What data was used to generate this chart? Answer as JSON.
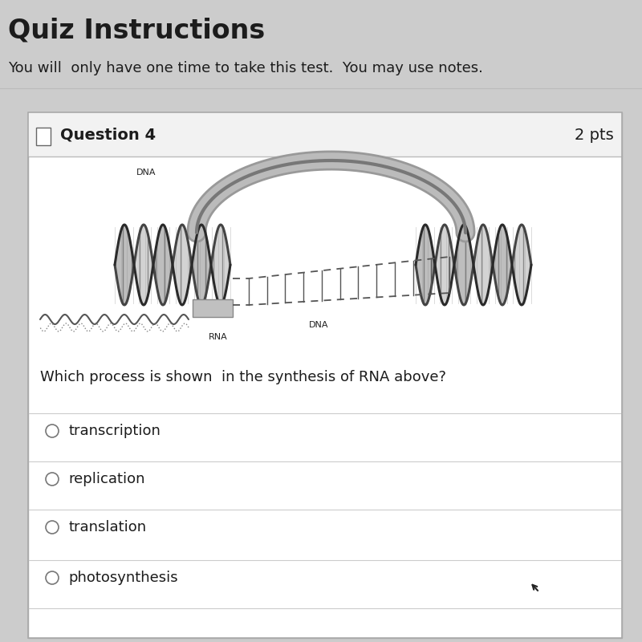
{
  "bg_color": "#cccccc",
  "card_bg": "#ffffff",
  "header_bg": "#f2f2f2",
  "title": "Quiz Instructions",
  "subtitle": "You will  only have one time to take this test.  You may use notes.",
  "question_label": "Question 4",
  "pts_label": "2 pts",
  "question_text": "Which process is shown  in the synthesis of RNA above?",
  "options": [
    "transcription",
    "replication",
    "translation",
    "photosynthesis"
  ],
  "dna_label_left": "DNA",
  "dna_label_mid": "DNA",
  "rna_label": "RNA",
  "title_fontsize": 24,
  "subtitle_fontsize": 13,
  "question_label_fontsize": 14,
  "question_text_fontsize": 13,
  "option_fontsize": 13,
  "label_fontsize": 8
}
